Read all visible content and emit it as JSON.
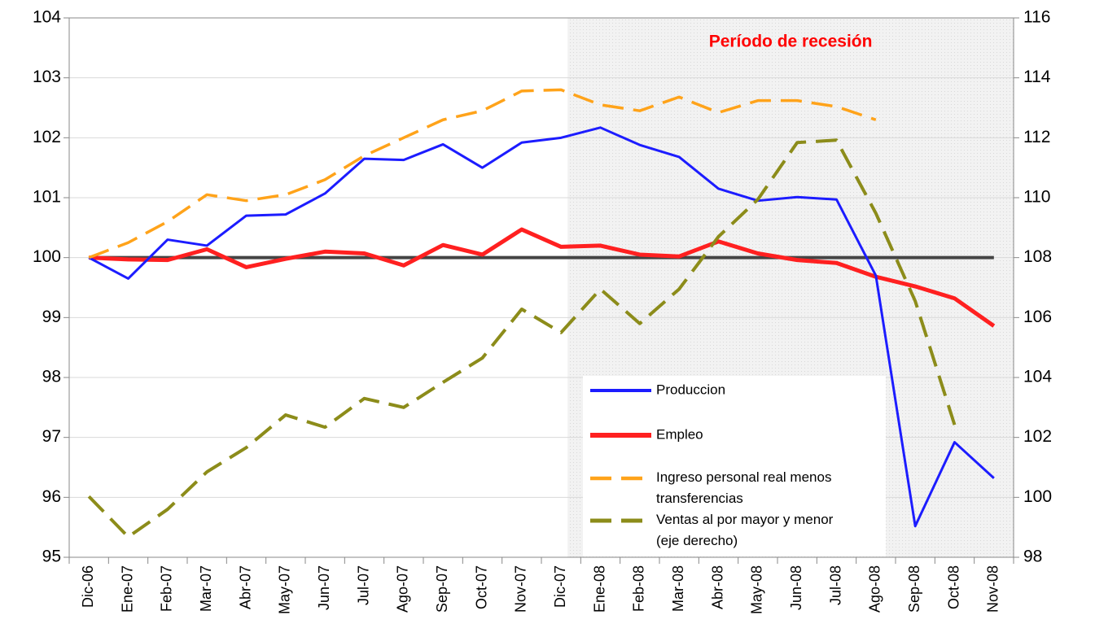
{
  "chart_data": {
    "type": "line",
    "categories": [
      "Dic-06",
      "Ene-07",
      "Feb-07",
      "Mar-07",
      "Abr-07",
      "May-07",
      "Jun-07",
      "Jul-07",
      "Ago-07",
      "Sep-07",
      "Oct-07",
      "Nov-07",
      "Dic-07",
      "Ene-08",
      "Feb-08",
      "Mar-08",
      "Abr-08",
      "May-08",
      "Jun-08",
      "Jul-08",
      "Ago-08",
      "Sep-08",
      "Oct-08",
      "Nov-08"
    ],
    "series": [
      {
        "name": "Produccion",
        "color": "#1c1cff",
        "width": 3,
        "dashed": false,
        "values": [
          100,
          99.65,
          100.3,
          100.2,
          100.7,
          100.72,
          101.07,
          101.65,
          101.63,
          101.89,
          101.5,
          101.92,
          102.0,
          102.17,
          101.88,
          101.68,
          101.15,
          100.95,
          101.01,
          100.97,
          99.7,
          95.52,
          96.92,
          96.32
        ]
      },
      {
        "name": "Empleo",
        "color": "#ff2020",
        "width": 5,
        "dashed": false,
        "values": [
          100,
          99.97,
          99.96,
          100.14,
          99.84,
          99.98,
          100.1,
          100.07,
          99.87,
          100.21,
          100.05,
          100.47,
          100.18,
          100.2,
          100.05,
          100.02,
          100.27,
          100.07,
          99.96,
          99.91,
          99.68,
          99.52,
          99.32,
          98.86
        ]
      },
      {
        "name": "Ingreso personal real menos transferencias",
        "color": "#ffa31a",
        "width": 3.5,
        "dashed": true,
        "values": [
          100,
          100.25,
          100.6,
          101.05,
          100.95,
          101.05,
          101.3,
          101.7,
          102.0,
          102.3,
          102.45,
          102.78,
          102.8,
          102.55,
          102.45,
          102.68,
          102.42,
          102.62,
          102.62,
          102.52,
          102.3,
          null,
          null,
          null
        ]
      },
      {
        "name": "Ventas al por mayor y menor (eje derecho)",
        "color": "#8c8c1a",
        "width": 4,
        "dashed": true,
        "axis": "y2",
        "values": [
          100.03,
          98.68,
          99.6,
          100.85,
          101.66,
          102.75,
          102.34,
          103.3,
          103.0,
          103.84,
          104.65,
          106.28,
          105.5,
          106.95,
          105.8,
          106.95,
          108.7,
          109.94,
          111.84,
          111.92,
          109.48,
          106.55,
          102.42,
          null
        ]
      }
    ],
    "ylim": [
      95,
      104
    ],
    "yticks": [
      95,
      96,
      97,
      98,
      99,
      100,
      101,
      102,
      103,
      104
    ],
    "y2lim": [
      98,
      116
    ],
    "y2ticks": [
      98,
      100,
      102,
      104,
      106,
      108,
      110,
      112,
      114,
      116
    ],
    "grid": true,
    "reference_line": {
      "value": 100,
      "color": "#444444"
    },
    "recession": {
      "label": "Período de recesión",
      "start": "Dic-07"
    }
  }
}
